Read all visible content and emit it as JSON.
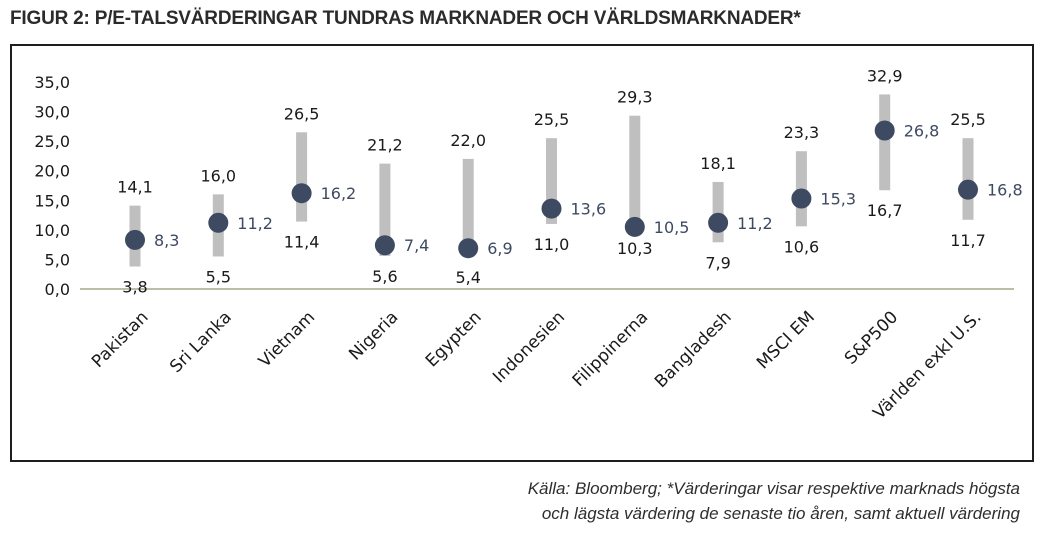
{
  "title": "FIGUR 2: P/E-TALSVÄRDERINGAR TUNDRAS MARKNADER OCH VÄRLDSMARKNADER*",
  "source": {
    "line1": "Källa: Bloomberg; *Värderingar visar respektive marknads högsta",
    "line2": "och lägsta värdering de senaste tio åren, samt aktuell värdering"
  },
  "colors": {
    "range_bar": "#bfbfbf",
    "marker": "#3e4a61",
    "current_label": "#3e4a61",
    "text": "#1a1a1a",
    "axis": "#a6a68c"
  },
  "chart_data": {
    "type": "range-dot",
    "categories": [
      "Pakistan",
      "Sri Lanka",
      "Vietnam",
      "Nigeria",
      "Egypten",
      "Indonesien",
      "Filippinerna",
      "Bangladesh",
      "MSCI EM",
      "S&P500",
      "Världen exkl U.S."
    ],
    "high": [
      "14,1",
      "16,0",
      "26,5",
      "21,2",
      "22,0",
      "25,5",
      "29,3",
      "18,1",
      "23,3",
      "32,9",
      "25,5"
    ],
    "low": [
      "3,8",
      "5,5",
      "11,4",
      "5,6",
      "5,4",
      "11,0",
      "10,3",
      "7,9",
      "10,6",
      "16,7",
      "11,7"
    ],
    "current": [
      "8,3",
      "11,2",
      "16,2",
      "7,4",
      "6,9",
      "13,6",
      "10,5",
      "11,2",
      "15,3",
      "26,8",
      "16,8"
    ],
    "yticks": [
      "0,0",
      "5,0",
      "10,0",
      "15,0",
      "20,0",
      "25,0",
      "30,0",
      "35,0"
    ],
    "ylim": [
      0,
      35
    ],
    "grid": false,
    "legend": "none"
  }
}
